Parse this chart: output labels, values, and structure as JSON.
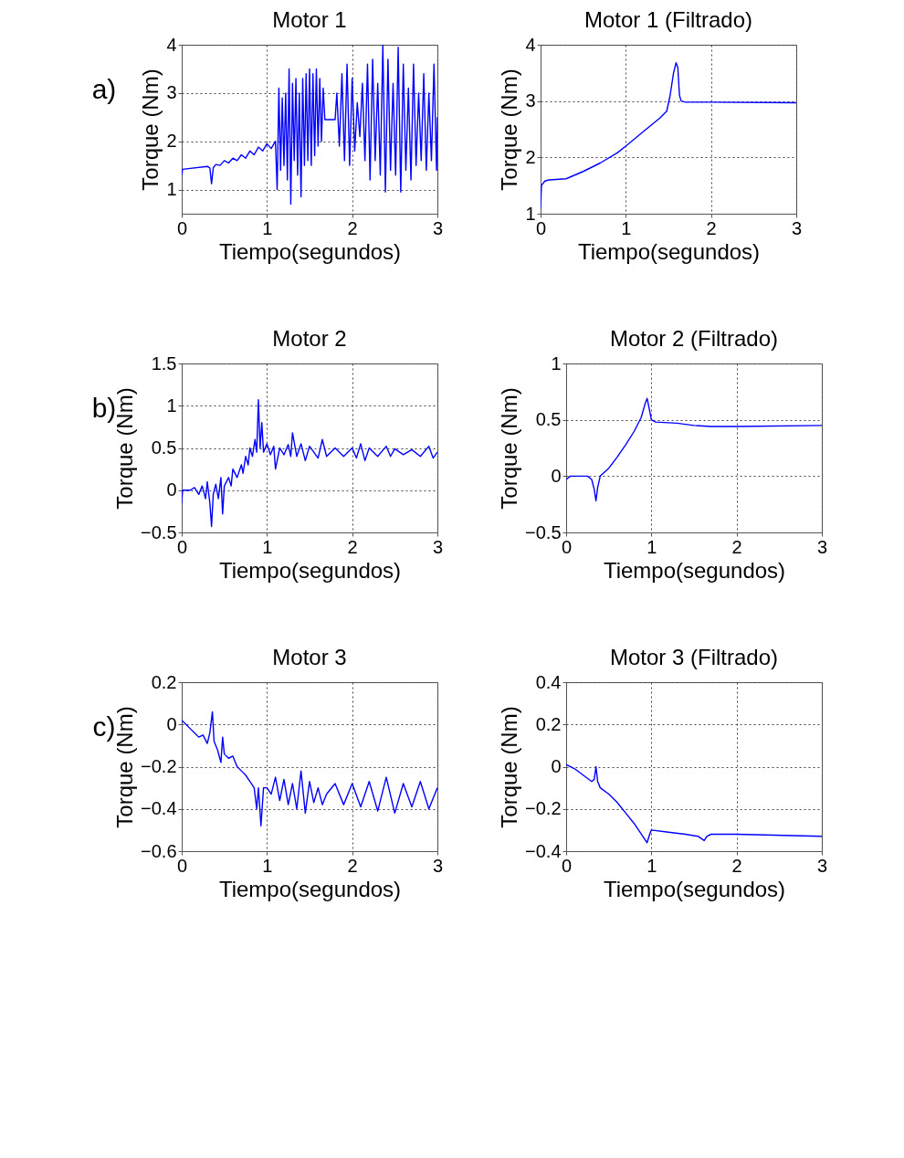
{
  "chart_data": [
    {
      "type": "line",
      "title": "Motor 1",
      "xlabel": "Tiempo(segundos)",
      "ylabel": "Torque (Nm)",
      "annotations": [
        "a)"
      ],
      "xlim": [
        0,
        3
      ],
      "ylim": [
        0.5,
        4
      ],
      "xticks": [
        0,
        1,
        2,
        3
      ],
      "yticks": [
        1,
        2,
        3,
        4
      ],
      "grid": true,
      "x": [
        0,
        0.01,
        0.3,
        0.33,
        0.35,
        0.37,
        0.4,
        0.45,
        0.5,
        0.55,
        0.6,
        0.65,
        0.7,
        0.75,
        0.8,
        0.85,
        0.9,
        0.95,
        1.0,
        1.05,
        1.1,
        1.12,
        1.14,
        1.16,
        1.18,
        1.2,
        1.22,
        1.24,
        1.26,
        1.28,
        1.3,
        1.32,
        1.34,
        1.36,
        1.38,
        1.4,
        1.42,
        1.44,
        1.46,
        1.48,
        1.5,
        1.52,
        1.54,
        1.56,
        1.58,
        1.6,
        1.62,
        1.64,
        1.66,
        1.68,
        1.8,
        1.82,
        1.85,
        1.88,
        1.91,
        1.94,
        1.97,
        2.0,
        2.03,
        2.06,
        2.09,
        2.12,
        2.15,
        2.18,
        2.21,
        2.24,
        2.27,
        2.3,
        2.33,
        2.36,
        2.39,
        2.42,
        2.45,
        2.48,
        2.51,
        2.54,
        2.57,
        2.6,
        2.63,
        2.66,
        2.69,
        2.72,
        2.75,
        2.78,
        2.81,
        2.84,
        2.87,
        2.9,
        2.93,
        2.96,
        2.99,
        3.0
      ],
      "series": [
        {
          "color": "#0000ff",
          "values": [
            1.3,
            1.42,
            1.48,
            1.45,
            1.12,
            1.45,
            1.52,
            1.5,
            1.6,
            1.55,
            1.65,
            1.6,
            1.72,
            1.65,
            1.8,
            1.72,
            1.88,
            1.8,
            1.95,
            1.85,
            2.0,
            1.0,
            3.1,
            1.4,
            2.9,
            1.5,
            3.0,
            1.2,
            3.5,
            0.7,
            3.2,
            1.6,
            3.3,
            1.3,
            3.0,
            0.85,
            3.3,
            1.5,
            3.4,
            1.6,
            3.5,
            1.5,
            3.4,
            1.7,
            3.5,
            1.9,
            3.3,
            2.0,
            3.1,
            2.45,
            2.45,
            3.0,
            1.9,
            3.4,
            1.6,
            3.6,
            1.5,
            3.3,
            1.8,
            2.8,
            2.1,
            3.2,
            1.6,
            3.6,
            1.2,
            3.7,
            1.6,
            3.2,
            1.3,
            4.0,
            0.95,
            3.7,
            1.4,
            3.2,
            1.3,
            3.95,
            0.95,
            3.6,
            1.4,
            3.1,
            1.2,
            3.6,
            1.5,
            3.0,
            1.6,
            3.4,
            1.4,
            3.0,
            1.6,
            3.6,
            1.4,
            2.5
          ]
        }
      ]
    },
    {
      "type": "line",
      "title": "Motor 1 (Filtrado)",
      "xlabel": "Tiempo(segundos)",
      "ylabel": "Torque (Nm)",
      "xlim": [
        0,
        3
      ],
      "ylim": [
        1,
        4
      ],
      "xticks": [
        0,
        1,
        2,
        3
      ],
      "yticks": [
        1,
        2,
        3,
        4
      ],
      "grid": true,
      "x": [
        0,
        0.01,
        0.05,
        0.1,
        0.3,
        0.5,
        0.7,
        0.9,
        1.0,
        1.2,
        1.4,
        1.48,
        1.52,
        1.56,
        1.59,
        1.61,
        1.63,
        1.65,
        1.7,
        2,
        3
      ],
      "series": [
        {
          "color": "#0000ff",
          "values": [
            1.1,
            1.5,
            1.58,
            1.6,
            1.62,
            1.75,
            1.9,
            2.08,
            2.2,
            2.45,
            2.7,
            2.82,
            3.1,
            3.5,
            3.68,
            3.6,
            3.1,
            3.0,
            2.98,
            2.98,
            2.97
          ]
        }
      ]
    },
    {
      "type": "line",
      "title": "Motor 2",
      "xlabel": "Tiempo(segundos)",
      "ylabel": "Torque (Nm)",
      "annotations": [
        "b)"
      ],
      "xlim": [
        0,
        3
      ],
      "ylim": [
        -0.5,
        1.5
      ],
      "xticks": [
        0,
        1,
        2,
        3
      ],
      "yticks": [
        -0.5,
        0,
        0.5,
        1,
        1.5
      ],
      "grid": true,
      "x": [
        0,
        0.01,
        0.1,
        0.15,
        0.2,
        0.24,
        0.28,
        0.3,
        0.33,
        0.35,
        0.37,
        0.4,
        0.43,
        0.46,
        0.48,
        0.5,
        0.55,
        0.58,
        0.6,
        0.65,
        0.7,
        0.72,
        0.75,
        0.78,
        0.8,
        0.83,
        0.86,
        0.88,
        0.9,
        0.92,
        0.94,
        0.96,
        1.0,
        1.04,
        1.08,
        1.1,
        1.15,
        1.2,
        1.25,
        1.28,
        1.3,
        1.35,
        1.4,
        1.45,
        1.5,
        1.6,
        1.65,
        1.7,
        1.8,
        1.9,
        2.0,
        2.05,
        2.1,
        2.15,
        2.2,
        2.3,
        2.4,
        2.45,
        2.5,
        2.6,
        2.7,
        2.8,
        2.9,
        2.95,
        3.0
      ],
      "series": [
        {
          "color": "#0000ff",
          "values": [
            -0.15,
            0,
            0,
            0.03,
            -0.05,
            0.05,
            -0.1,
            0.1,
            -0.15,
            -0.43,
            -0.05,
            0.07,
            -0.1,
            0.15,
            -0.28,
            0.05,
            0.15,
            0.05,
            0.25,
            0.15,
            0.3,
            0.2,
            0.4,
            0.3,
            0.5,
            0.4,
            0.6,
            0.45,
            1.07,
            0.5,
            0.8,
            0.45,
            0.55,
            0.42,
            0.52,
            0.25,
            0.5,
            0.42,
            0.54,
            0.4,
            0.68,
            0.4,
            0.55,
            0.35,
            0.52,
            0.38,
            0.6,
            0.4,
            0.5,
            0.4,
            0.5,
            0.38,
            0.55,
            0.35,
            0.5,
            0.4,
            0.52,
            0.4,
            0.49,
            0.42,
            0.48,
            0.4,
            0.52,
            0.38,
            0.45
          ]
        }
      ]
    },
    {
      "type": "line",
      "title": "Motor 2 (Filtrado)",
      "xlabel": "Tiempo(segundos)",
      "ylabel": "Torque (Nm)",
      "xlim": [
        0,
        3
      ],
      "ylim": [
        -0.5,
        1
      ],
      "xticks": [
        0,
        1,
        2,
        3
      ],
      "yticks": [
        -0.5,
        0,
        0.5,
        1
      ],
      "grid": true,
      "x": [
        0,
        0.05,
        0.25,
        0.3,
        0.33,
        0.35,
        0.37,
        0.4,
        0.5,
        0.6,
        0.7,
        0.8,
        0.88,
        0.93,
        0.95,
        0.98,
        1.0,
        1.05,
        1.3,
        1.5,
        1.7,
        2,
        3
      ],
      "series": [
        {
          "color": "#0000ff",
          "values": [
            -0.03,
            0,
            0,
            -0.03,
            -0.12,
            -0.22,
            -0.1,
            0,
            0.07,
            0.17,
            0.28,
            0.4,
            0.52,
            0.65,
            0.69,
            0.58,
            0.5,
            0.48,
            0.47,
            0.45,
            0.44,
            0.44,
            0.45
          ]
        }
      ]
    },
    {
      "type": "line",
      "title": "Motor 3",
      "xlabel": "Tiempo(segundos)",
      "ylabel": "Torque (Nm)",
      "annotations": [
        "c)"
      ],
      "xlim": [
        0,
        3
      ],
      "ylim": [
        -0.6,
        0.2
      ],
      "xticks": [
        0,
        1,
        2,
        3
      ],
      "yticks": [
        -0.6,
        -0.4,
        -0.2,
        0,
        0.2
      ],
      "grid": true,
      "x": [
        0,
        0.05,
        0.1,
        0.15,
        0.2,
        0.25,
        0.3,
        0.33,
        0.36,
        0.38,
        0.42,
        0.46,
        0.48,
        0.5,
        0.55,
        0.6,
        0.65,
        0.7,
        0.75,
        0.8,
        0.85,
        0.88,
        0.9,
        0.93,
        0.96,
        1.0,
        1.05,
        1.1,
        1.15,
        1.2,
        1.25,
        1.3,
        1.35,
        1.4,
        1.45,
        1.5,
        1.55,
        1.6,
        1.65,
        1.7,
        1.8,
        1.9,
        2.0,
        2.1,
        2.2,
        2.3,
        2.4,
        2.5,
        2.6,
        2.7,
        2.8,
        2.9,
        3.0
      ],
      "series": [
        {
          "color": "#0000ff",
          "values": [
            0.02,
            0,
            -0.02,
            -0.04,
            -0.06,
            -0.05,
            -0.09,
            -0.04,
            0.06,
            -0.08,
            -0.12,
            -0.18,
            -0.06,
            -0.14,
            -0.16,
            -0.15,
            -0.2,
            -0.22,
            -0.24,
            -0.27,
            -0.3,
            -0.4,
            -0.3,
            -0.48,
            -0.3,
            -0.3,
            -0.33,
            -0.25,
            -0.36,
            -0.26,
            -0.38,
            -0.28,
            -0.4,
            -0.22,
            -0.42,
            -0.27,
            -0.37,
            -0.3,
            -0.38,
            -0.33,
            -0.28,
            -0.38,
            -0.28,
            -0.39,
            -0.27,
            -0.41,
            -0.25,
            -0.42,
            -0.28,
            -0.39,
            -0.27,
            -0.4,
            -0.3
          ]
        }
      ]
    },
    {
      "type": "line",
      "title": "Motor 3 (Filtrado)",
      "xlabel": "Tiempo(segundos)",
      "ylabel": "Torque (Nm)",
      "xlim": [
        0,
        3
      ],
      "ylim": [
        -0.4,
        0.4
      ],
      "xticks": [
        0,
        1,
        2,
        3
      ],
      "yticks": [
        -0.4,
        -0.2,
        0,
        0.2,
        0.4
      ],
      "grid": true,
      "x": [
        0,
        0.1,
        0.2,
        0.3,
        0.33,
        0.35,
        0.37,
        0.4,
        0.5,
        0.6,
        0.7,
        0.8,
        0.9,
        0.95,
        0.98,
        1.0,
        1.2,
        1.4,
        1.55,
        1.62,
        1.65,
        1.7,
        2,
        3
      ],
      "series": [
        {
          "color": "#0000ff",
          "values": [
            0.01,
            -0.01,
            -0.04,
            -0.07,
            -0.06,
            0,
            -0.07,
            -0.1,
            -0.13,
            -0.17,
            -0.22,
            -0.27,
            -0.33,
            -0.36,
            -0.32,
            -0.3,
            -0.31,
            -0.32,
            -0.33,
            -0.35,
            -0.33,
            -0.32,
            -0.32,
            -0.33
          ]
        }
      ]
    }
  ]
}
